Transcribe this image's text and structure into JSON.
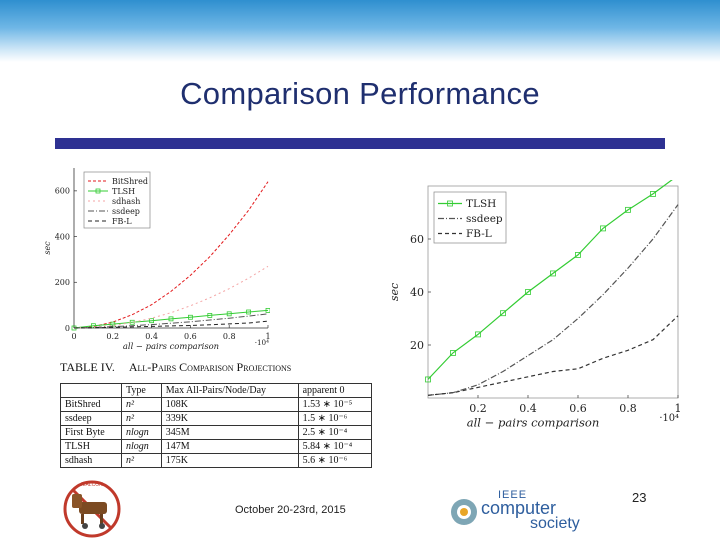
{
  "slide": {
    "title": "Comparison Performance",
    "date": "October 20-23rd, 2015",
    "page_number": "23",
    "colors": {
      "title": "#1f2f6f",
      "bar": "#2e3192",
      "top_gradient": "#2f8fcf"
    }
  },
  "logos": {
    "left_logo_text": "MALCON",
    "ieee_small": "IEEE",
    "ieee_line1": "computer",
    "ieee_line2": "society"
  },
  "table": {
    "caption_number": "TABLE IV.",
    "caption_text": "All-Pairs Comparison Projections",
    "headers": [
      "",
      "Type",
      "Max All-Pairs/Node/Day",
      "apparent 0"
    ],
    "rows": [
      {
        "name": "BitShred",
        "type": "n²",
        "max": "108K",
        "apparent": "1.53 ∗ 10⁻⁵"
      },
      {
        "name": "ssdeep",
        "type": "n²",
        "max": "339K",
        "apparent": "1.5 ∗ 10⁻⁶"
      },
      {
        "name": "First Byte",
        "type": "nlogn",
        "max": "345M",
        "apparent": "2.5 ∗ 10⁻⁴"
      },
      {
        "name": "TLSH",
        "type": "nlogn",
        "max": "147M",
        "apparent": "5.84 ∗ 10⁻⁴"
      },
      {
        "name": "sdhash",
        "type": "n²",
        "max": "175K",
        "apparent": "5.6 ∗ 10⁻⁶"
      }
    ]
  },
  "chart_data": [
    {
      "type": "line",
      "xlabel": "all − pairs comparison",
      "ylabel": "sec",
      "x_multiplier": "·10⁴",
      "xlim": [
        0,
        1
      ],
      "ylim": [
        0,
        700
      ],
      "x_ticks": [
        0,
        0.2,
        0.4,
        0.6,
        0.8,
        1
      ],
      "x_tick_labels": [
        "0",
        "0.2",
        "0.4",
        "0.6",
        "0.8",
        "1"
      ],
      "y_ticks": [
        0,
        200,
        400,
        600
      ],
      "y_tick_labels": [
        "0",
        "200",
        "400",
        "600"
      ],
      "legend_position": "top-left",
      "series": [
        {
          "name": "BitShred",
          "color": "#e31a1c",
          "dash": "3,2",
          "marker": "none",
          "x": [
            0,
            0.1,
            0.2,
            0.3,
            0.4,
            0.5,
            0.6,
            0.7,
            0.8,
            0.9,
            1
          ],
          "y": [
            0,
            6,
            26,
            58,
            102,
            160,
            230,
            312,
            408,
            515,
            640
          ]
        },
        {
          "name": "TLSH",
          "color": "#33cc33",
          "dash": "",
          "marker": "square",
          "x": [
            0,
            0.1,
            0.2,
            0.3,
            0.4,
            0.5,
            0.6,
            0.7,
            0.8,
            0.9,
            1
          ],
          "y": [
            0,
            10,
            17,
            25,
            32,
            40,
            47,
            55,
            62,
            70,
            77
          ]
        },
        {
          "name": "sdhash",
          "color": "#f4a6a6",
          "dash": "2,3",
          "marker": "none",
          "x": [
            0,
            0.1,
            0.2,
            0.3,
            0.4,
            0.5,
            0.6,
            0.7,
            0.8,
            0.9,
            1
          ],
          "y": [
            0,
            3,
            11,
            24,
            43,
            67,
            97,
            132,
            172,
            218,
            270
          ]
        },
        {
          "name": "ssdeep",
          "color": "#555555",
          "dash": "6,2,1,2",
          "marker": "none",
          "x": [
            0,
            0.1,
            0.2,
            0.3,
            0.4,
            0.5,
            0.6,
            0.7,
            0.8,
            0.9,
            1
          ],
          "y": [
            0,
            2,
            6,
            10,
            15,
            21,
            27,
            35,
            43,
            52,
            62
          ]
        },
        {
          "name": "FB-L",
          "color": "#222222",
          "dash": "4,3",
          "marker": "none",
          "x": [
            0,
            0.1,
            0.2,
            0.3,
            0.4,
            0.5,
            0.6,
            0.7,
            0.8,
            0.9,
            1
          ],
          "y": [
            0,
            1,
            3,
            5,
            7,
            9,
            11,
            14,
            18,
            22,
            30
          ]
        }
      ]
    },
    {
      "type": "line",
      "xlabel": "all − pairs comparison",
      "ylabel": "sec",
      "x_multiplier": "·10⁴",
      "xlim": [
        0,
        1
      ],
      "ylim": [
        0,
        80
      ],
      "x_ticks": [
        0.2,
        0.4,
        0.6,
        0.8,
        1
      ],
      "x_tick_labels": [
        "0.2",
        "0.4",
        "0.6",
        "0.8",
        "1"
      ],
      "y_ticks": [
        20,
        40,
        60
      ],
      "y_tick_labels": [
        "20",
        "40",
        "60"
      ],
      "legend_position": "top-left",
      "series": [
        {
          "name": "TLSH",
          "color": "#33cc33",
          "dash": "",
          "marker": "square",
          "x": [
            0,
            0.1,
            0.2,
            0.3,
            0.4,
            0.5,
            0.6,
            0.7,
            0.8,
            0.9,
            1
          ],
          "y": [
            7,
            17,
            24,
            32,
            40,
            47,
            54,
            64,
            71,
            77,
            84
          ]
        },
        {
          "name": "ssdeep",
          "color": "#555555",
          "dash": "6,2,1,2",
          "marker": "none",
          "x": [
            0,
            0.1,
            0.2,
            0.3,
            0.4,
            0.5,
            0.6,
            0.7,
            0.8,
            0.9,
            1
          ],
          "y": [
            1,
            2,
            5,
            10,
            16,
            22,
            30,
            39,
            49,
            60,
            73
          ]
        },
        {
          "name": "FB-L",
          "color": "#333333",
          "dash": "4,3",
          "marker": "none",
          "x": [
            0,
            0.1,
            0.2,
            0.3,
            0.4,
            0.5,
            0.6,
            0.7,
            0.8,
            0.9,
            1
          ],
          "y": [
            1,
            2,
            4,
            6,
            8,
            10,
            11,
            15,
            18,
            22,
            31
          ]
        }
      ]
    }
  ]
}
